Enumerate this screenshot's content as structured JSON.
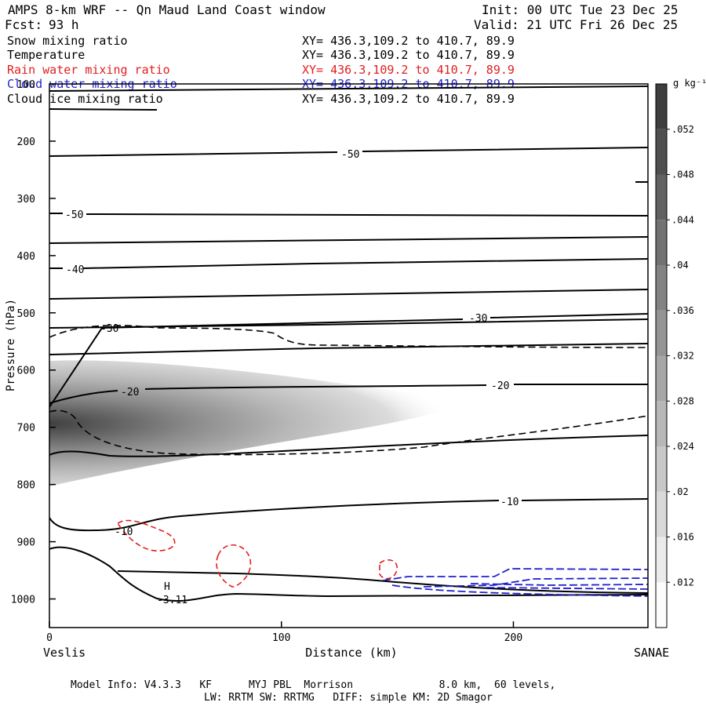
{
  "header": {
    "title": "AMPS 8-km WRF -- Qn Maud Land Coast window",
    "init": "Init: 00 UTC Tue 23 Dec 25",
    "fcst_label": "Fcst:",
    "fcst_value": "93 h",
    "valid": "Valid: 21 UTC Fri 26 Dec 25"
  },
  "fields": [
    {
      "name": "Snow mixing ratio",
      "xy": "XY= 436.3,109.2 to 410.7, 89.9",
      "color": "#000000"
    },
    {
      "name": "Temperature",
      "xy": "XY= 436.3,109.2 to 410.7, 89.9",
      "color": "#000000"
    },
    {
      "name": "Rain water mixing ratio",
      "xy": "XY= 436.3,109.2 to 410.7, 89.9",
      "color": "#e02020"
    },
    {
      "name": "Cloud water mixing ratio",
      "xy": "XY= 436.3,109.2 to 410.7, 89.9",
      "color": "#2020d0"
    },
    {
      "name": "Cloud ice mixing ratio",
      "xy": "XY= 436.3,109.2 to 410.7, 89.9",
      "color": "#000000"
    }
  ],
  "chart_data": {
    "type": "contour-cross-section",
    "ylabel": "Pressure (hPa)",
    "xlabel": "Distance (km)",
    "x_range": [
      0,
      258
    ],
    "y_range_hPa": [
      1050,
      100
    ],
    "y_axis_inverted": true,
    "y_ticks": [
      100,
      200,
      300,
      400,
      500,
      600,
      700,
      800,
      900,
      1000
    ],
    "x_ticks": [
      0,
      100,
      200
    ],
    "left_endpoint": "Veslis",
    "right_endpoint": "SANAE",
    "colorbar": {
      "unit": "g kg⁻¹",
      "ticks": [
        ".012",
        ".016",
        ".02",
        ".024",
        ".028",
        ".032",
        ".036",
        ".04",
        ".044",
        ".048",
        ".052"
      ],
      "tick_values": [
        0.012,
        0.016,
        0.02,
        0.024,
        0.028,
        0.032,
        0.036,
        0.04,
        0.044,
        0.048,
        0.052
      ],
      "range": [
        0.008,
        0.056
      ]
    },
    "snow_max": {
      "x_km": 0,
      "p_hPa": 700,
      "value": 0.046
    },
    "temperature_contours": [
      {
        "label": "-50",
        "label_x_km": 129,
        "label_p_hPa": 225
      },
      {
        "label": "-50",
        "label_x_km": 11,
        "label_p_hPa": 327
      },
      {
        "label": "-40",
        "label_x_km": 11,
        "label_p_hPa": 427
      },
      {
        "label": "-30",
        "label_x_km": 26,
        "label_p_hPa": 532
      },
      {
        "label": "-30",
        "label_x_km": 185,
        "label_p_hPa": 510
      },
      {
        "label": "-20",
        "label_x_km": 35,
        "label_p_hPa": 640
      },
      {
        "label": "-20",
        "label_x_km": 195,
        "label_p_hPa": 628
      },
      {
        "label": "-10",
        "label_x_km": 198,
        "label_p_hPa": 830
      },
      {
        "label": "-10",
        "label_x_km": 32,
        "label_p_hPa": 880
      }
    ],
    "annotations": [
      {
        "text": "H",
        "x_km": 51,
        "p_hPa": 978
      },
      {
        "text": "-3.11",
        "x_km": 52,
        "p_hPa": 1000
      }
    ]
  },
  "footer": {
    "line1": "Model Info: V4.3.3   KF      MYJ PBL  Morrison              8.0 km,  60 levels,",
    "line2": "LW: RRTM SW: RRTMG   DIFF: simple KM: 2D Smagor"
  }
}
